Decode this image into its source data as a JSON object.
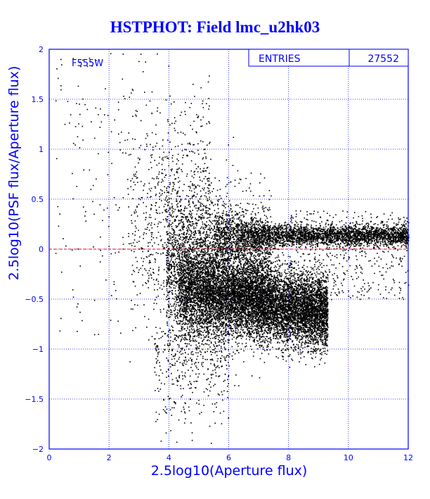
{
  "chart_data": {
    "type": "scatter",
    "title": "HSTPHOT: Field lmc_u2hk03",
    "xlabel": "2.5log10(Aperture flux)",
    "ylabel": "2.5log10(PSF flux/Aperture flux)",
    "xlim": [
      0,
      12
    ],
    "ylim": [
      -2,
      2
    ],
    "x_ticks": [
      "0",
      "2",
      "4",
      "6",
      "8",
      "10",
      "12"
    ],
    "y_ticks": [
      "2",
      "1.5",
      "1",
      "0.5",
      "0",
      "−0.5",
      "−1",
      "−1.5",
      "−2"
    ],
    "grid": true,
    "filter_label": "F555W",
    "stats": {
      "label": "ENTRIES",
      "value": "27552"
    },
    "reference_line": {
      "y": 0,
      "color": "#ff0000",
      "style": "dashed"
    },
    "point_color": "#000000",
    "series_note": "27552 points; dense clump near x=4.5-8, y=-0.4 to -0.7; horizontal branch at y~0.15 from x=6 to 12; sparse scatter at x<4",
    "series": [
      {
        "values_sample": [
          [
            0.4,
            1.85
          ],
          [
            0.7,
            1.35
          ],
          [
            1.0,
            1.02
          ],
          [
            1.2,
            0.38
          ],
          [
            1.5,
            -0.85
          ],
          [
            2.3,
            1.4
          ],
          [
            2.6,
            1.1
          ],
          [
            2.8,
            0.6
          ],
          [
            3.0,
            0.9
          ],
          [
            3.2,
            0.3
          ],
          [
            3.4,
            0.1
          ],
          [
            3.6,
            -0.4
          ],
          [
            3.8,
            -1.6
          ],
          [
            4.2,
            -0.6
          ],
          [
            4.6,
            -0.5
          ],
          [
            4.8,
            -0.4
          ],
          [
            5.0,
            -0.45
          ],
          [
            5.5,
            -0.5
          ],
          [
            6.0,
            -0.45
          ],
          [
            6.5,
            -0.5
          ],
          [
            7.0,
            -0.55
          ],
          [
            7.5,
            -0.55
          ],
          [
            8.0,
            -0.58
          ],
          [
            8.5,
            -0.6
          ],
          [
            9.0,
            -0.62
          ],
          [
            6.0,
            0.15
          ],
          [
            7.0,
            0.14
          ],
          [
            8.0,
            0.14
          ],
          [
            9.0,
            0.13
          ],
          [
            10.0,
            0.14
          ],
          [
            11.0,
            0.15
          ],
          [
            11.9,
            0.15
          ],
          [
            4.4,
            0.4
          ],
          [
            4.9,
            0.3
          ],
          [
            5.2,
            0.1
          ],
          [
            4.6,
            -0.9
          ],
          [
            4.1,
            -1.3
          ],
          [
            3.6,
            -1.7
          ],
          [
            5.4,
            -1.05
          ]
        ]
      }
    ]
  }
}
